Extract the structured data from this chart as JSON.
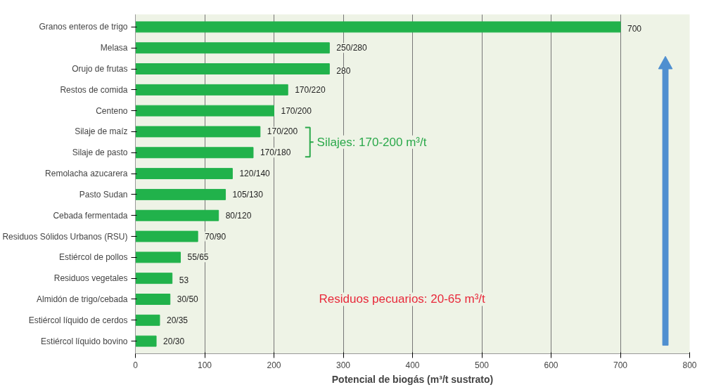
{
  "chart_data": {
    "type": "bar",
    "orientation": "horizontal",
    "xlabel": "Potencial de biogás (m³/t sustrato)",
    "categories": [
      "Granos enteros de trigo",
      "Melasa",
      "Orujo de frutas",
      "Restos de comida",
      "Centeno",
      "Silaje de maíz",
      "Silaje de pasto",
      "Remolacha azucarera",
      "Pasto Sudan",
      "Cebada fermentada",
      "Residuos Sólidos Urbanos (RSU)",
      "Estiércol de pollos",
      "Residuos vegetales",
      "Almidón de trigo/cebada",
      "Estiércol líquido de cerdos",
      "Estiércol líquido bovino"
    ],
    "values": [
      700,
      280,
      280,
      220,
      200,
      180,
      170,
      140,
      130,
      120,
      90,
      65,
      53,
      50,
      35,
      30
    ],
    "value_labels": [
      "700",
      "250/280",
      "280",
      "170/220",
      "170/200",
      "170/200",
      "170/180",
      "120/140",
      "105/130",
      "80/120",
      "70/90",
      "55/65",
      "53",
      "30/50",
      "20/35",
      "20/30"
    ],
    "color": "#21b24b",
    "xlim": [
      0,
      800
    ],
    "xticks": [
      0,
      100,
      200,
      300,
      400,
      500,
      600,
      700,
      800
    ],
    "grid": "x",
    "annotations": [
      "Silajes: 170-200 m³/t",
      "Residuos pecuarios: 20-65 m³/t"
    ]
  }
}
